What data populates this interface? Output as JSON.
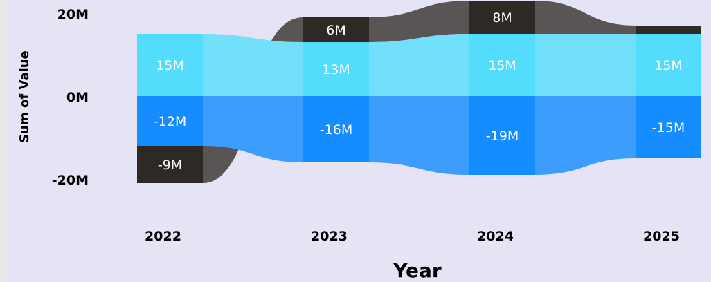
{
  "chart_data": {
    "type": "ribbon",
    "categories": [
      "2022",
      "2023",
      "2024",
      "2025"
    ],
    "series": [
      {
        "values": [
          -9,
          6,
          8,
          2
        ],
        "labels": [
          "-9M",
          "6M",
          "8M",
          ""
        ],
        "color": "#2d2a26",
        "ribbon_color": "#4e4946"
      },
      {
        "values": [
          15,
          13,
          15,
          15
        ],
        "labels": [
          "15M",
          "13M",
          "15M",
          "15M"
        ],
        "color": "#54dcfd",
        "ribbon_color": "#72e0fb"
      },
      {
        "values": [
          -12,
          -16,
          -19,
          -15
        ],
        "labels": [
          "-12M",
          "-16M",
          "-19M",
          "-15M"
        ],
        "color": "#158cff",
        "ribbon_color": "#3c9dfd"
      }
    ],
    "stacking": {
      "2022": {
        "positive": [
          1
        ],
        "negative": [
          2,
          0
        ]
      },
      "2023": {
        "positive": [
          1,
          0
        ],
        "negative": [
          2
        ]
      },
      "2024": {
        "positive": [
          1,
          0
        ],
        "negative": [
          2
        ]
      },
      "2025": {
        "positive": [
          1,
          0
        ],
        "negative": [
          2
        ]
      }
    },
    "y_ticks": [
      "20M",
      "0M",
      "-20M"
    ],
    "y_tick_values": [
      20,
      0,
      -20
    ],
    "ylim": [
      -20,
      20
    ],
    "xlabel": "Year",
    "ylabel": "Sum of Value",
    "grid": false,
    "legend": "none"
  }
}
